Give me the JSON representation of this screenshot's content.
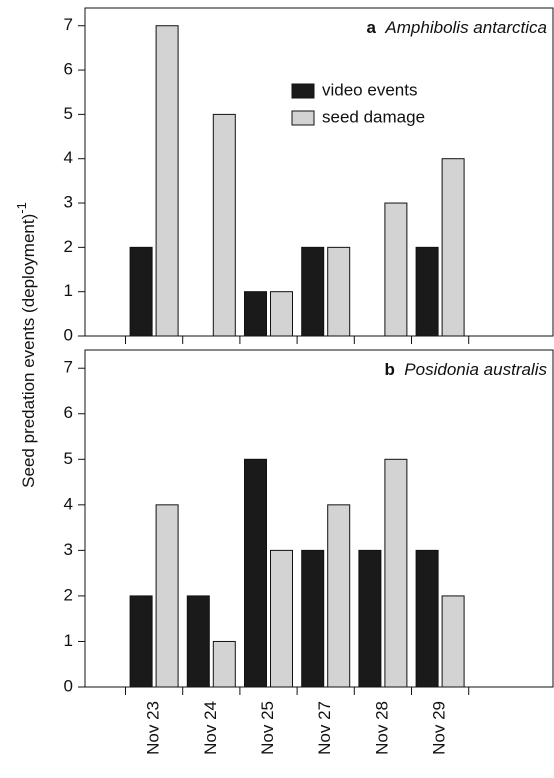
{
  "chart_data": [
    {
      "type": "bar",
      "panel": "a",
      "title": "Amphibolis antarctica",
      "ylabel": "Seed predation events (deployment)",
      "ylabel_sup": "-1",
      "series": [
        {
          "name": "video events",
          "color": "#1a1a1a",
          "values": [
            2,
            0,
            1,
            2,
            0,
            2
          ]
        },
        {
          "name": "seed damage",
          "color": "#d3d3d3",
          "values": [
            7,
            5,
            1,
            2,
            3,
            4
          ]
        }
      ],
      "ylim": [
        0,
        7.4
      ],
      "yticks": [
        0,
        1,
        2,
        3,
        4,
        5,
        6,
        7
      ]
    },
    {
      "type": "bar",
      "panel": "b",
      "title": "Posidonia australis",
      "categories": [
        "Nov 23",
        "Nov 24",
        "Nov 25",
        "Nov 27",
        "Nov 28",
        "Nov 29"
      ],
      "series": [
        {
          "color": "#1a1a1a",
          "values": [
            2,
            2,
            5,
            3,
            3,
            3
          ]
        },
        {
          "color": "#d3d3d3",
          "values": [
            4,
            1,
            3,
            4,
            5,
            2
          ]
        }
      ],
      "ylim": [
        0,
        7.4
      ],
      "yticks": [
        0,
        1,
        2,
        3,
        4,
        5,
        6,
        7
      ]
    }
  ]
}
